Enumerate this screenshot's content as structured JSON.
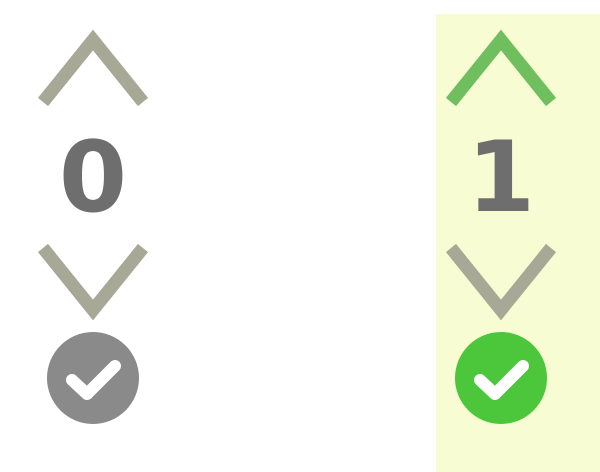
{
  "votes": [
    {
      "count": "0",
      "voted_up": false,
      "accepted": false,
      "icons": {
        "up": "chevron-up-icon",
        "down": "chevron-down-icon",
        "accept": "checkmark-icon"
      }
    },
    {
      "count": "1",
      "voted_up": true,
      "accepted": true,
      "icons": {
        "up": "chevron-up-icon",
        "down": "chevron-down-icon",
        "accept": "checkmark-icon"
      }
    }
  ],
  "colors": {
    "arrow_inactive": "#a7a996",
    "arrow_active": "#6fbf5e",
    "count_text": "#6e6e6e",
    "check_inactive": "#8a8a8a",
    "check_active": "#4cc63a",
    "highlight_bg": "#f8fcd2"
  }
}
